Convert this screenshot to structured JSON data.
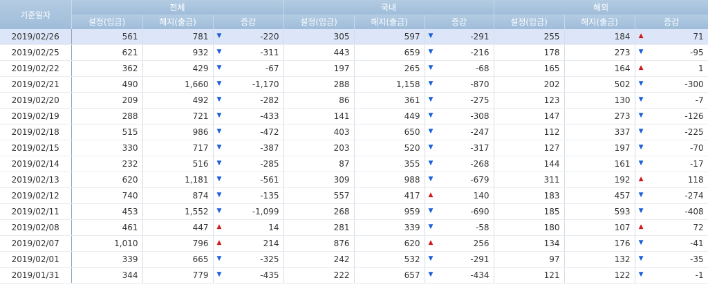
{
  "headers": {
    "date": "기준일자",
    "total": "전체",
    "domestic": "국내",
    "overseas": "해외",
    "deposit": "설정(입금)",
    "withdraw": "해지(출금)",
    "change": "증감"
  },
  "colors": {
    "up": "#d0191b",
    "down": "#1b5fd8",
    "header": "#a9c4de",
    "selected_row": "#dde6f8"
  },
  "rows": [
    {
      "date": "2019/02/26",
      "t": [
        "561",
        "781",
        "down",
        "-220"
      ],
      "d": [
        "305",
        "597",
        "down",
        "-291"
      ],
      "o": [
        "255",
        "184",
        "up",
        "71"
      ]
    },
    {
      "date": "2019/02/25",
      "t": [
        "621",
        "932",
        "down",
        "-311"
      ],
      "d": [
        "443",
        "659",
        "down",
        "-216"
      ],
      "o": [
        "178",
        "273",
        "down",
        "-95"
      ]
    },
    {
      "date": "2019/02/22",
      "t": [
        "362",
        "429",
        "down",
        "-67"
      ],
      "d": [
        "197",
        "265",
        "down",
        "-68"
      ],
      "o": [
        "165",
        "164",
        "up",
        "1"
      ]
    },
    {
      "date": "2019/02/21",
      "t": [
        "490",
        "1,660",
        "down",
        "-1,170"
      ],
      "d": [
        "288",
        "1,158",
        "down",
        "-870"
      ],
      "o": [
        "202",
        "502",
        "down",
        "-300"
      ]
    },
    {
      "date": "2019/02/20",
      "t": [
        "209",
        "492",
        "down",
        "-282"
      ],
      "d": [
        "86",
        "361",
        "down",
        "-275"
      ],
      "o": [
        "123",
        "130",
        "down",
        "-7"
      ]
    },
    {
      "date": "2019/02/19",
      "t": [
        "288",
        "721",
        "down",
        "-433"
      ],
      "d": [
        "141",
        "449",
        "down",
        "-308"
      ],
      "o": [
        "147",
        "273",
        "down",
        "-126"
      ]
    },
    {
      "date": "2019/02/18",
      "t": [
        "515",
        "986",
        "down",
        "-472"
      ],
      "d": [
        "403",
        "650",
        "down",
        "-247"
      ],
      "o": [
        "112",
        "337",
        "down",
        "-225"
      ]
    },
    {
      "date": "2019/02/15",
      "t": [
        "330",
        "717",
        "down",
        "-387"
      ],
      "d": [
        "203",
        "520",
        "down",
        "-317"
      ],
      "o": [
        "127",
        "197",
        "down",
        "-70"
      ]
    },
    {
      "date": "2019/02/14",
      "t": [
        "232",
        "516",
        "down",
        "-285"
      ],
      "d": [
        "87",
        "355",
        "down",
        "-268"
      ],
      "o": [
        "144",
        "161",
        "down",
        "-17"
      ]
    },
    {
      "date": "2019/02/13",
      "t": [
        "620",
        "1,181",
        "down",
        "-561"
      ],
      "d": [
        "309",
        "988",
        "down",
        "-679"
      ],
      "o": [
        "311",
        "192",
        "up",
        "118"
      ]
    },
    {
      "date": "2019/02/12",
      "t": [
        "740",
        "874",
        "down",
        "-135"
      ],
      "d": [
        "557",
        "417",
        "up",
        "140"
      ],
      "o": [
        "183",
        "457",
        "down",
        "-274"
      ]
    },
    {
      "date": "2019/02/11",
      "t": [
        "453",
        "1,552",
        "down",
        "-1,099"
      ],
      "d": [
        "268",
        "959",
        "down",
        "-690"
      ],
      "o": [
        "185",
        "593",
        "down",
        "-408"
      ]
    },
    {
      "date": "2019/02/08",
      "t": [
        "461",
        "447",
        "up",
        "14"
      ],
      "d": [
        "281",
        "339",
        "down",
        "-58"
      ],
      "o": [
        "180",
        "107",
        "up",
        "72"
      ]
    },
    {
      "date": "2019/02/07",
      "t": [
        "1,010",
        "796",
        "up",
        "214"
      ],
      "d": [
        "876",
        "620",
        "up",
        "256"
      ],
      "o": [
        "134",
        "176",
        "down",
        "-41"
      ]
    },
    {
      "date": "2019/02/01",
      "t": [
        "339",
        "665",
        "down",
        "-325"
      ],
      "d": [
        "242",
        "532",
        "down",
        "-291"
      ],
      "o": [
        "97",
        "132",
        "down",
        "-35"
      ]
    },
    {
      "date": "2019/01/31",
      "t": [
        "344",
        "779",
        "down",
        "-435"
      ],
      "d": [
        "222",
        "657",
        "down",
        "-434"
      ],
      "o": [
        "121",
        "122",
        "down",
        "-1"
      ]
    }
  ]
}
